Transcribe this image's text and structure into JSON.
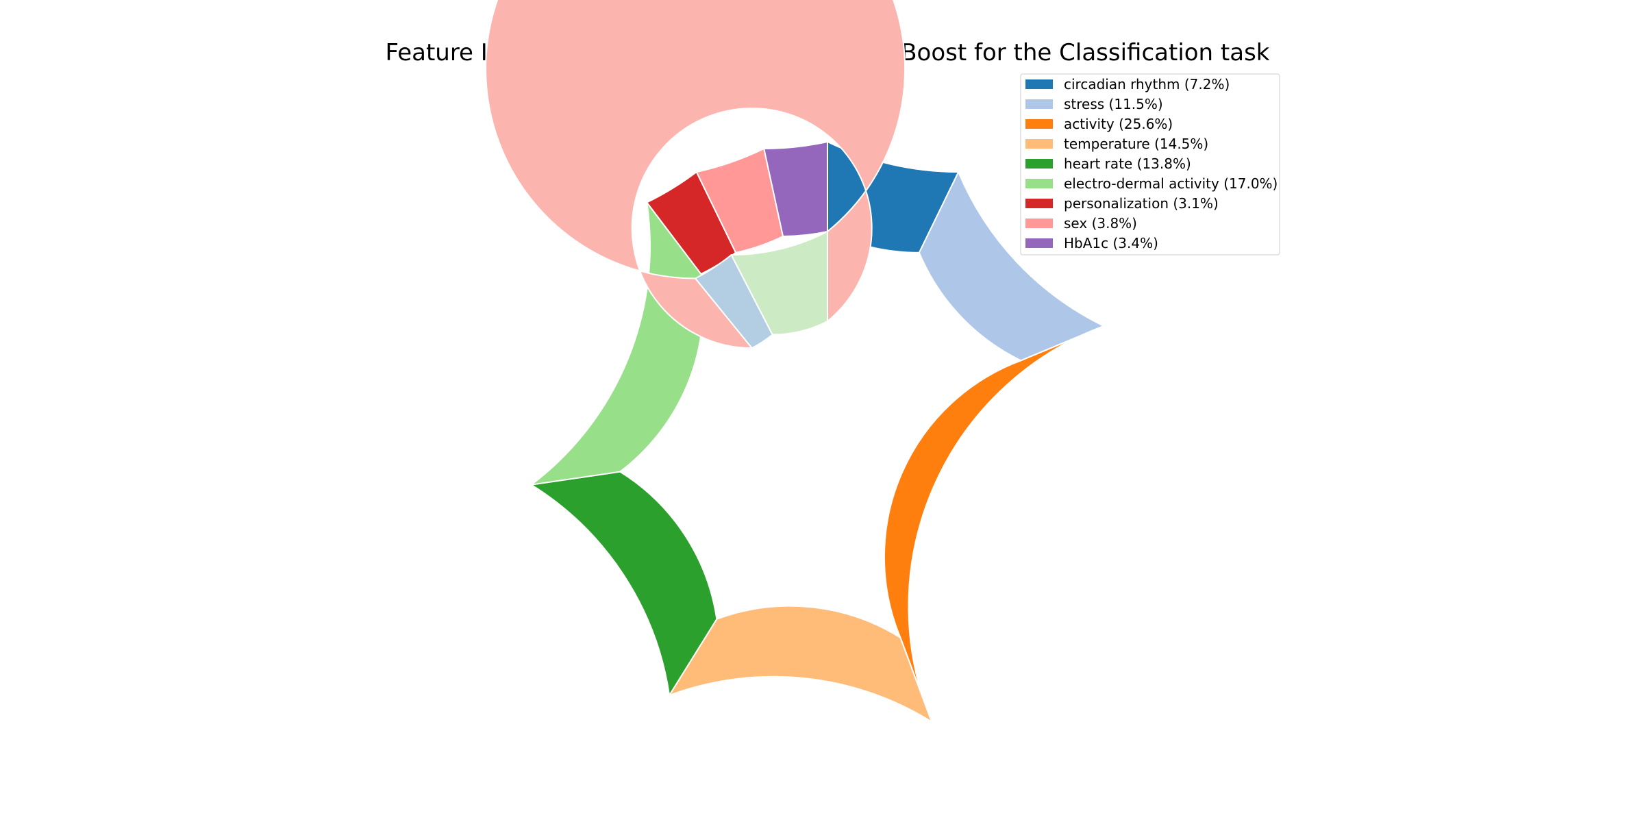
{
  "chart_data": {
    "type": "pie",
    "title": "Feature Importance Pie Plot according to XGBoost for the Classification task",
    "legend_placement": "top-right",
    "outer_ring": {
      "categories": [
        "circadian rhythm",
        "stress",
        "activity",
        "temperature",
        "heart rate",
        "electro-dermal activity",
        "personalization",
        "sex",
        "HbA1c"
      ],
      "values": [
        7.2,
        11.5,
        25.6,
        14.5,
        13.8,
        17.0,
        3.1,
        3.8,
        3.4
      ],
      "colors": [
        "#1f77b4",
        "#aec7e8",
        "#ff7f0e",
        "#ffbb78",
        "#2ca02c",
        "#98df8a",
        "#d62728",
        "#ff9896",
        "#9467bd"
      ]
    },
    "inner_ring": {
      "values": [
        84.6,
        3.1,
        7.2
      ],
      "colors": [
        "#fbb4ae",
        "#b3cde3",
        "#ccebc5"
      ]
    },
    "legend": [
      {
        "label": "circadian rhythm (7.2%)",
        "color": "#1f77b4"
      },
      {
        "label": "stress (11.5%)",
        "color": "#aec7e8"
      },
      {
        "label": "activity (25.6%)",
        "color": "#ff7f0e"
      },
      {
        "label": "temperature (14.5%)",
        "color": "#ffbb78"
      },
      {
        "label": "heart rate (13.8%)",
        "color": "#2ca02c"
      },
      {
        "label": "electro-dermal activity (17.0%)",
        "color": "#98df8a"
      },
      {
        "label": "personalization (3.1%)",
        "color": "#d62728"
      },
      {
        "label": "sex (3.8%)",
        "color": "#ff9896"
      },
      {
        "label": "HbA1c (3.4%)",
        "color": "#9467bd"
      }
    ]
  }
}
